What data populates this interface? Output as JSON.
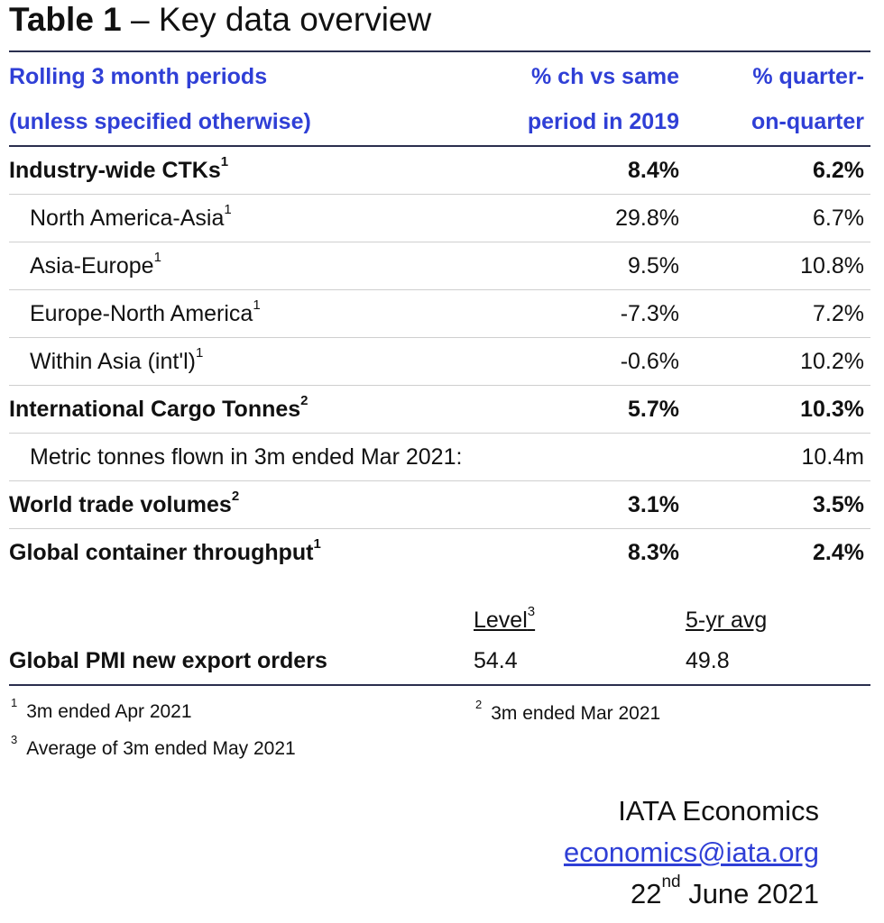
{
  "title": {
    "bold": "Table 1",
    "rest": " – Key data overview"
  },
  "header": {
    "col1_line1": "Rolling 3 month periods",
    "col1_line2": "(unless specified otherwise)",
    "col2_line1": "% ch vs same",
    "col2_line2": "period in 2019",
    "col3_line1": "% quarter-",
    "col3_line2": "on-quarter"
  },
  "rows": [
    {
      "label": "Industry-wide CTKs",
      "note": "1",
      "v1": "8.4%",
      "v2": "6.2%"
    },
    {
      "label": "North America-Asia",
      "note": "1",
      "v1": "29.8%",
      "v2": "6.7%"
    },
    {
      "label": "Asia-Europe",
      "note": "1",
      "v1": "9.5%",
      "v2": "10.8%"
    },
    {
      "label": "Europe-North America",
      "note": "1",
      "v1": "-7.3%",
      "v2": "7.2%"
    },
    {
      "label": "Within Asia (int'l)",
      "note": "1",
      "v1": "-0.6%",
      "v2": "10.2%"
    },
    {
      "label": "International Cargo Tonnes",
      "note": "2",
      "v1": "5.7%",
      "v2": "10.3%"
    },
    {
      "label": "Metric tonnes flown in 3m ended Mar 2021:",
      "v2": "10.4m"
    },
    {
      "label": "World trade volumes",
      "note": "2",
      "v1": "3.1%",
      "v2": "3.5%"
    },
    {
      "label": "Global container throughput",
      "note": "1",
      "v1": "8.3%",
      "v2": "2.4%"
    }
  ],
  "subheader": {
    "level": "Level",
    "level_note": "3",
    "avg": "5-yr avg"
  },
  "pmi": {
    "label": "Global PMI new export orders",
    "level": "54.4",
    "avg": "49.8"
  },
  "footnotes": {
    "f1_mark": "1",
    "f1_text": "3m ended Apr 2021",
    "f2_mark": "2",
    "f2_text": "3m ended Mar 2021",
    "f3_mark": "3",
    "f3_text": "Average of 3m ended May 2021"
  },
  "signature": {
    "org": "IATA Economics",
    "email": "economics@iata.org",
    "date_day": "22",
    "date_suffix": "nd",
    "date_rest": " June 2021"
  }
}
